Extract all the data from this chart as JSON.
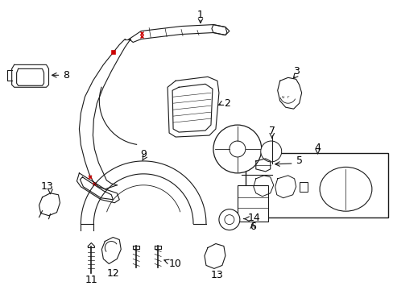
{
  "bg_color": "#ffffff",
  "line_color": "#1a1a1a",
  "red_color": "#cc0000",
  "label_color": "#000000",
  "fig_w": 4.89,
  "fig_h": 3.6,
  "dpi": 100
}
